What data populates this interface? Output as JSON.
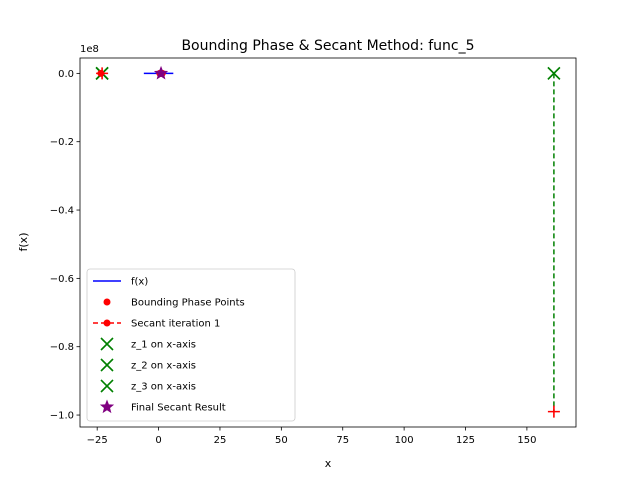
{
  "chart_data": {
    "type": "line",
    "title": "Bounding Phase & Secant Method: func_5",
    "xlabel": "x",
    "ylabel": "f(x)",
    "y_scale_label": "1e8",
    "xlim": [
      -32,
      170
    ],
    "ylim": [
      -1.035,
      0.045
    ],
    "x_ticks": [
      -25,
      0,
      25,
      50,
      75,
      100,
      125,
      150
    ],
    "x_tick_labels": [
      "−25",
      "0",
      "25",
      "50",
      "75",
      "100",
      "125",
      "150"
    ],
    "y_ticks": [
      0.0,
      -0.2,
      -0.4,
      -0.6,
      -0.8,
      -1.0
    ],
    "y_tick_labels": [
      "0.0",
      "−0.2",
      "−0.4",
      "−0.6",
      "−0.8",
      "−1.0"
    ],
    "grid": false,
    "legend_position": "lower-left",
    "colors": {
      "fx": "#0000ff",
      "bounding": "#ff0000",
      "secant": "#ff0000",
      "z": "#008000",
      "final": "#800080",
      "axes": "#000000"
    },
    "series": [
      {
        "name": "f(x)",
        "kind": "line",
        "x": [
          -6,
          6
        ],
        "y": [
          0.0,
          0.0
        ]
      },
      {
        "name": "Bounding Phase Points",
        "kind": "scatter",
        "x": [
          -23.5,
          0.5,
          1.0,
          1.5
        ],
        "y": [
          0.0,
          0.0,
          0.0,
          0.0
        ]
      },
      {
        "name": "Secant iteration 1",
        "kind": "line-marker",
        "x": [
          161,
          161
        ],
        "y": [
          0.0,
          -0.99
        ]
      },
      {
        "name": "z_1 on x-axis",
        "kind": "x-marker",
        "x": [
          -23
        ],
        "y": [
          0.0
        ]
      },
      {
        "name": "z_2 on x-axis",
        "kind": "x-marker",
        "x": [
          161
        ],
        "y": [
          0.0
        ]
      },
      {
        "name": "z_3 on x-axis",
        "kind": "x-marker",
        "x": [
          -23
        ],
        "y": [
          0.0
        ]
      },
      {
        "name": "Final Secant Result",
        "kind": "star",
        "x": [
          1
        ],
        "y": [
          0.0
        ]
      }
    ],
    "annotations": [
      {
        "kind": "plus-marker",
        "x": -23,
        "y": 0.0,
        "color": "#ff0000"
      },
      {
        "kind": "plus-marker",
        "x": 161,
        "y": -0.99,
        "color": "#ff0000"
      }
    ]
  }
}
